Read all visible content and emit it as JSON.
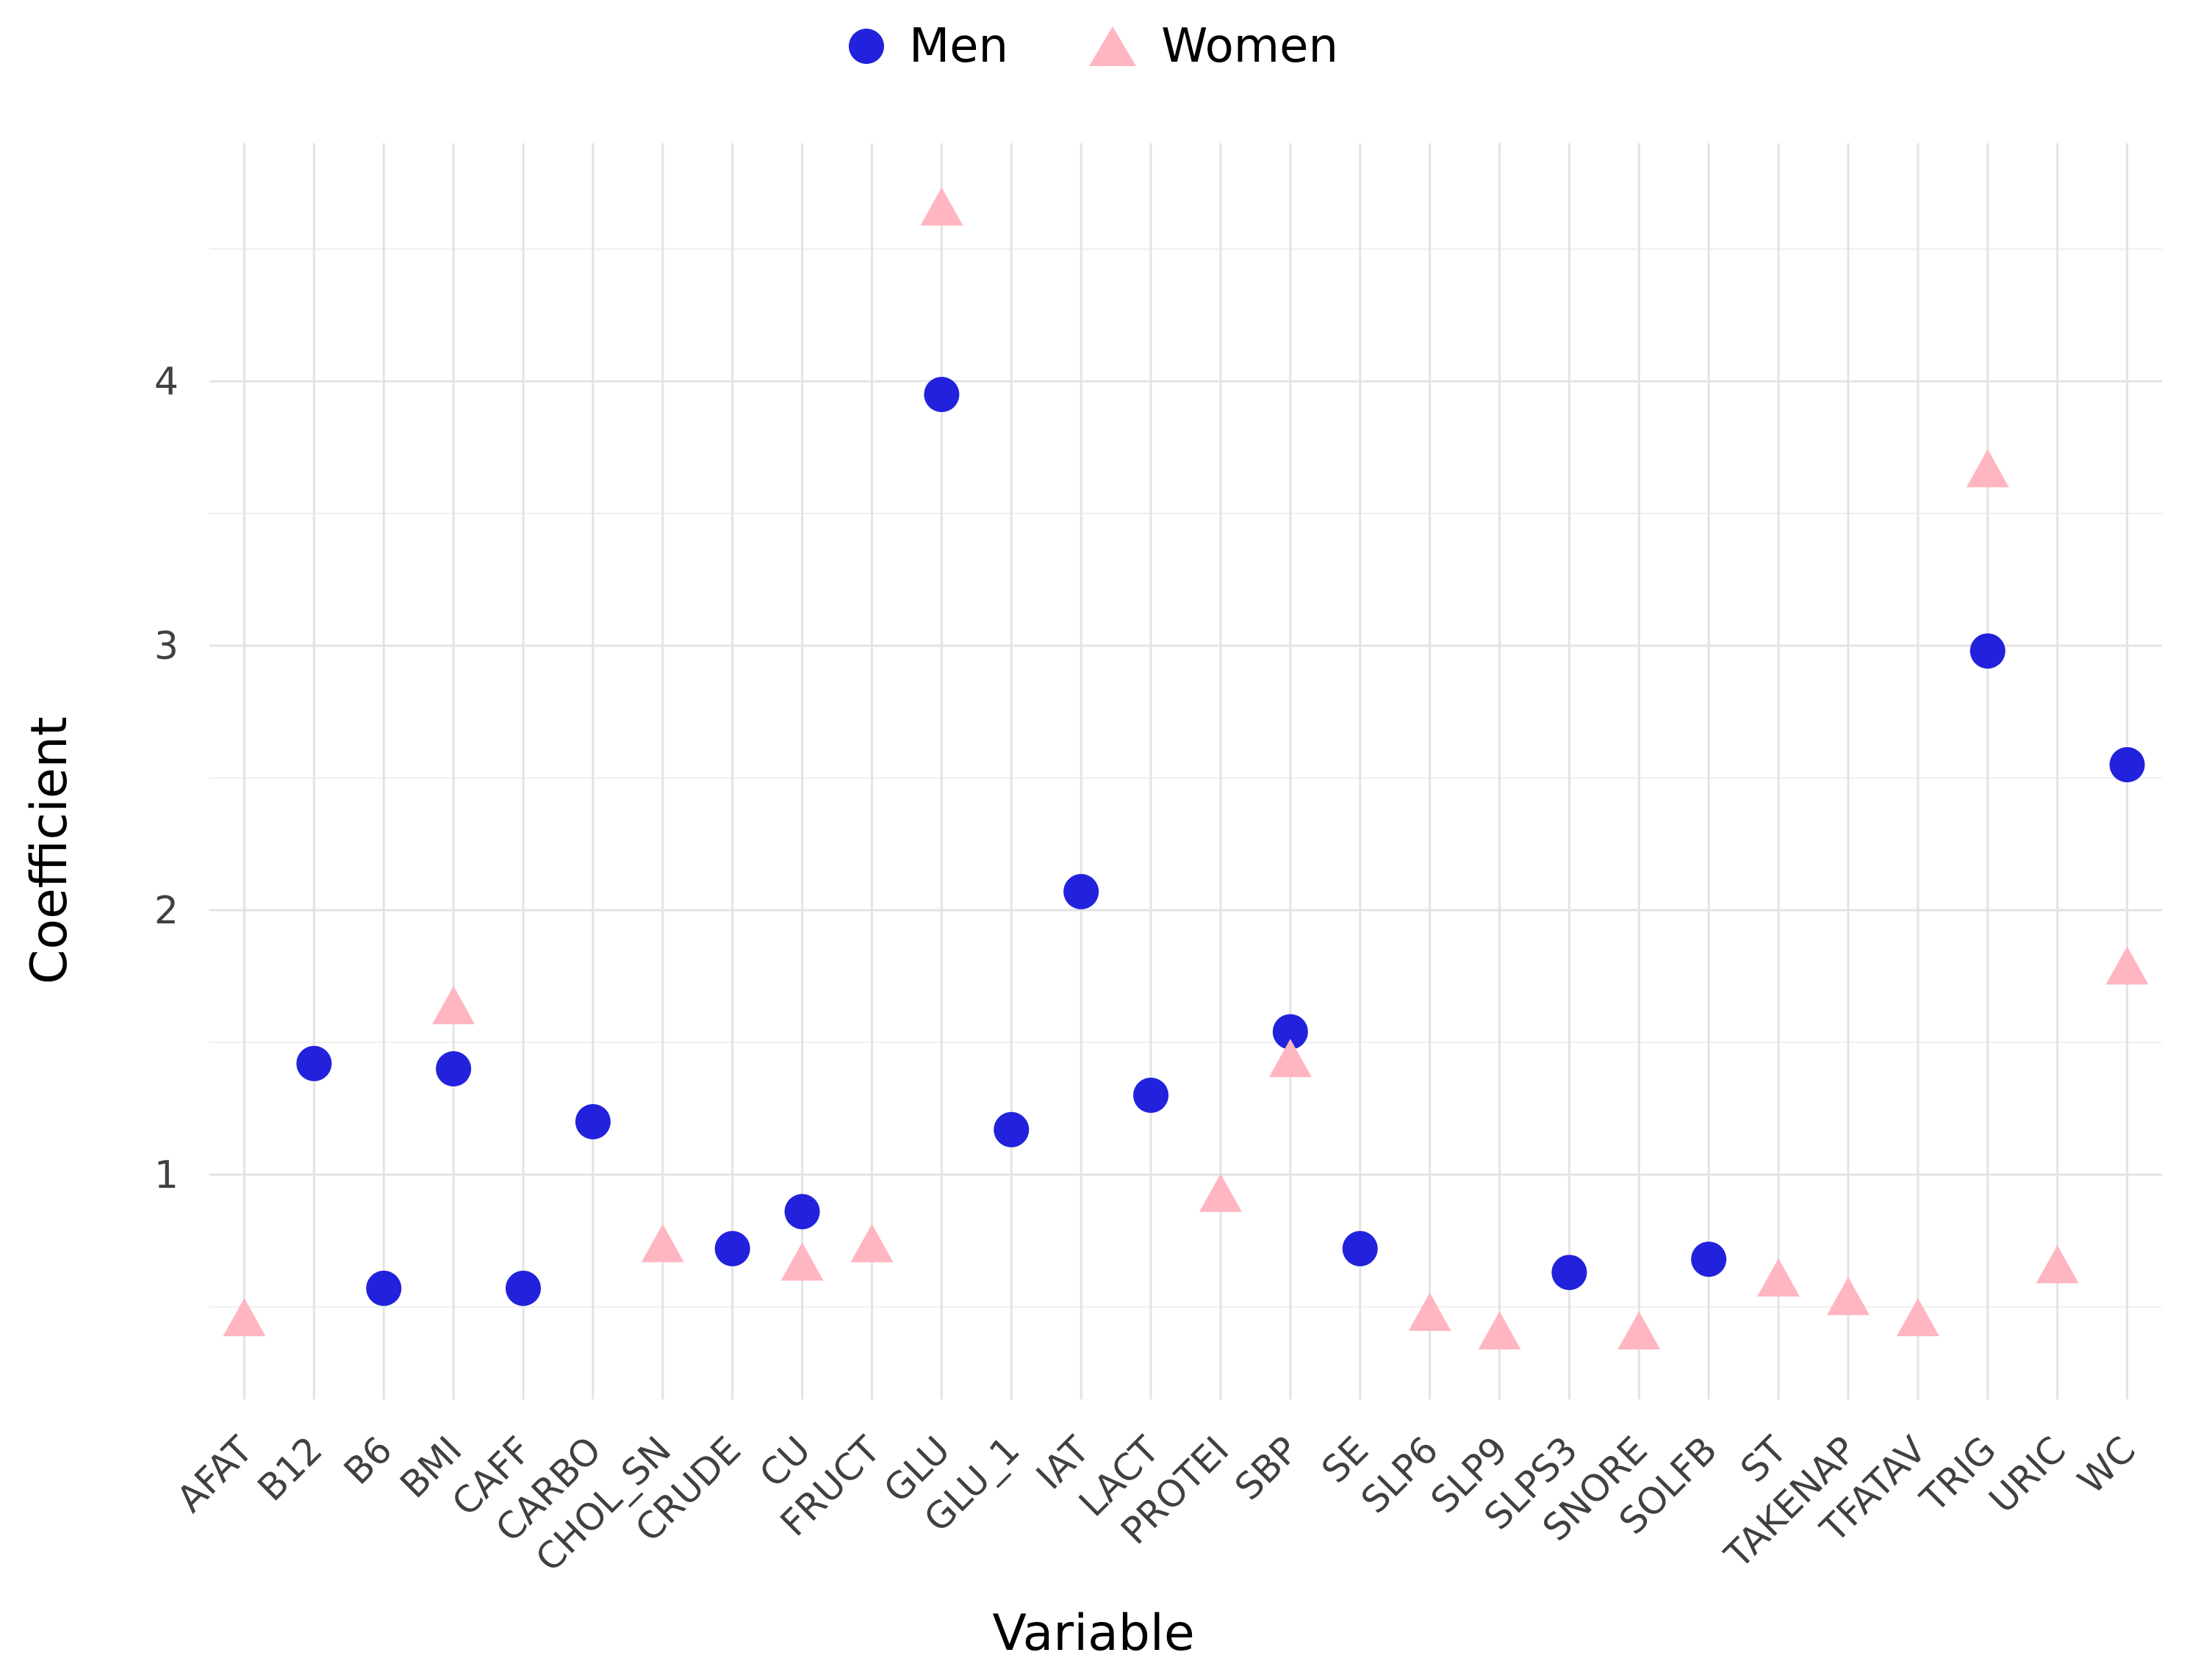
{
  "legend": {
    "men_label": "Men",
    "women_label": "Women"
  },
  "axes": {
    "x_title": "Variable",
    "y_title": "Coefficient",
    "y_ticks": [
      1,
      2,
      3,
      4
    ]
  },
  "colors": {
    "men": "#2222DC",
    "women": "#FFB6C1",
    "grid_major": "#E3E3E3",
    "grid_minor": "#F0F0F0",
    "tick_text": "#404040",
    "title_text": "#000000",
    "background": "#FFFFFF"
  },
  "chart_data": {
    "type": "scatter",
    "title": "",
    "xlabel": "Variable",
    "ylabel": "Coefficient",
    "ylim": [
      0.15,
      4.9
    ],
    "y_major_ticks": [
      1,
      2,
      3,
      4
    ],
    "grid": true,
    "legend_position": "top",
    "categories": [
      "AFAT",
      "B12",
      "B6",
      "BMI",
      "CAFF",
      "CARBO",
      "CHOL_SN",
      "CRUDE",
      "CU",
      "FRUCT",
      "GLU",
      "GLU_1",
      "IAT",
      "LACT",
      "PROTEI",
      "SBP",
      "SE",
      "SLP6",
      "SLP9",
      "SLPS3",
      "SNORE",
      "SOLFB",
      "ST",
      "TAKENAP",
      "TFATAV",
      "TRIG",
      "URIC",
      "WC"
    ],
    "series": [
      {
        "name": "Men",
        "marker": "circle",
        "color": "#2222DC",
        "values": [
          null,
          1.42,
          0.57,
          1.4,
          0.57,
          1.2,
          null,
          0.72,
          0.86,
          null,
          3.95,
          1.17,
          2.07,
          1.3,
          null,
          1.54,
          0.72,
          null,
          null,
          0.63,
          null,
          0.68,
          null,
          null,
          null,
          2.98,
          null,
          2.55
        ]
      },
      {
        "name": "Women",
        "marker": "triangle",
        "color": "#FFB6C1",
        "values": [
          0.45,
          null,
          null,
          1.63,
          null,
          null,
          0.73,
          null,
          0.66,
          0.73,
          4.65,
          null,
          null,
          null,
          0.92,
          1.43,
          null,
          0.47,
          0.4,
          null,
          0.4,
          null,
          0.6,
          0.53,
          0.45,
          3.66,
          0.65,
          1.78
        ]
      }
    ]
  }
}
